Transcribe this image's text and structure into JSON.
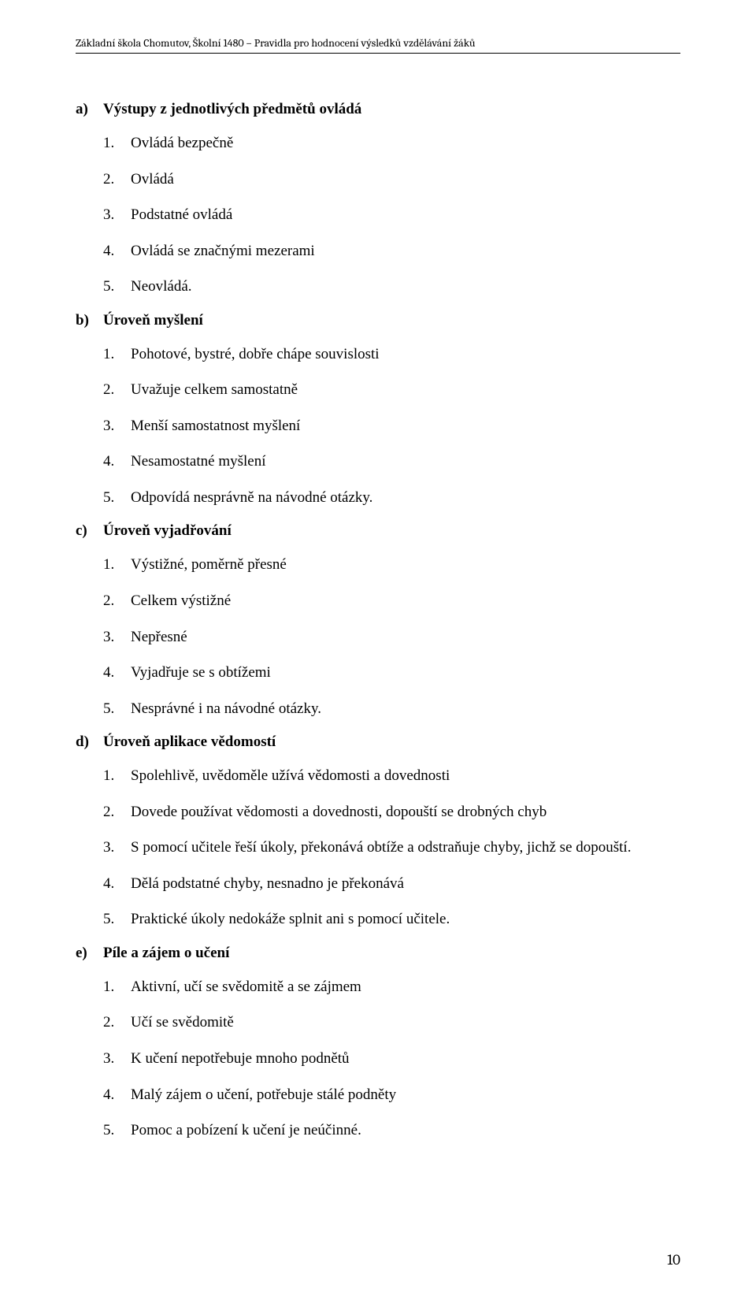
{
  "header": "Základní škola Chomutov, Školní 1480 – Pravidla pro hodnocení výsledků vzdělávání žáků",
  "sections": {
    "a": {
      "letter": "a)",
      "title": "Výstupy z jednotlivých předmětů ovládá",
      "items": [
        {
          "n": "1.",
          "t": "Ovládá bezpečně"
        },
        {
          "n": "2.",
          "t": "Ovládá"
        },
        {
          "n": "3.",
          "t": "Podstatné ovládá"
        },
        {
          "n": "4.",
          "t": "Ovládá se značnými mezerami"
        },
        {
          "n": "5.",
          "t": "Neovládá."
        }
      ]
    },
    "b": {
      "letter": "b)",
      "title": "Úroveň myšlení",
      "items": [
        {
          "n": "1.",
          "t": "Pohotové, bystré, dobře chápe souvislosti"
        },
        {
          "n": "2.",
          "t": "Uvažuje celkem samostatně"
        },
        {
          "n": "3.",
          "t": "Menší samostatnost myšlení"
        },
        {
          "n": "4.",
          "t": "Nesamostatné myšlení"
        },
        {
          "n": "5.",
          "t": "Odpovídá nesprávně na návodné otázky."
        }
      ]
    },
    "c": {
      "letter": "c)",
      "title": "Úroveň vyjadřování",
      "items": [
        {
          "n": "1.",
          "t": "Výstižné, poměrně přesné"
        },
        {
          "n": "2.",
          "t": "Celkem výstižné"
        },
        {
          "n": "3.",
          "t": "Nepřesné"
        },
        {
          "n": "4.",
          "t": "Vyjadřuje se s obtížemi"
        },
        {
          "n": "5.",
          "t": "Nesprávné i na návodné otázky."
        }
      ]
    },
    "d": {
      "letter": "d)",
      "title": "Úroveň aplikace vědomostí",
      "items": [
        {
          "n": "1.",
          "t": "Spolehlivě, uvědoměle užívá vědomosti a dovednosti"
        },
        {
          "n": "2.",
          "t": "Dovede používat vědomosti a dovednosti, dopouští se drobných chyb"
        },
        {
          "n": "3.",
          "t": "S pomocí učitele řeší úkoly, překonává obtíže a odstraňuje chyby, jichž se dopouští."
        },
        {
          "n": "4.",
          "t": "Dělá podstatné chyby, nesnadno je překonává"
        },
        {
          "n": "5.",
          "t": "Praktické úkoly nedokáže splnit ani s pomocí učitele."
        }
      ]
    },
    "e": {
      "letter": "e)",
      "title": "Píle a zájem o učení",
      "items": [
        {
          "n": "1.",
          "t": "Aktivní, učí se svědomitě a se zájmem"
        },
        {
          "n": "2.",
          "t": "Učí se svědomitě"
        },
        {
          "n": "3.",
          "t": "K učení nepotřebuje mnoho podnětů"
        },
        {
          "n": "4.",
          "t": "Malý zájem o učení, potřebuje stálé podněty"
        },
        {
          "n": "5.",
          "t": "Pomoc a pobízení k učení je neúčinné."
        }
      ]
    }
  },
  "page_number": "10"
}
